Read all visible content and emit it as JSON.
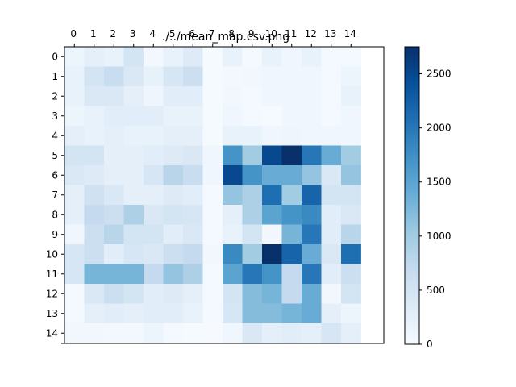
{
  "chart_data": {
    "type": "heatmap",
    "title": "./../mean_map.csv.png",
    "x_ticks": [
      "0",
      "1",
      "2",
      "3",
      "4",
      "5",
      "6",
      "7",
      "8",
      "9",
      "10",
      "11",
      "12",
      "13",
      "14"
    ],
    "y_ticks": [
      "0",
      "1",
      "2",
      "3",
      "4",
      "5",
      "6",
      "7",
      "8",
      "9",
      "10",
      "11",
      "12",
      "13",
      "14"
    ],
    "grid": false,
    "colormap": "Blues",
    "colorbar": {
      "range": [
        0,
        2750
      ],
      "ticks": [
        0,
        500,
        1000,
        1500,
        2000,
        2500
      ],
      "tick_labels": [
        "0",
        "500",
        "1000",
        "1500",
        "2000",
        "2500"
      ],
      "position": "right"
    },
    "values": [
      [
        150,
        250,
        200,
        500,
        60,
        200,
        350,
        30,
        200,
        50,
        200,
        100,
        200,
        50,
        50
      ],
      [
        200,
        500,
        650,
        400,
        220,
        450,
        600,
        30,
        60,
        80,
        100,
        100,
        100,
        50,
        150
      ],
      [
        200,
        400,
        400,
        250,
        120,
        300,
        300,
        30,
        80,
        50,
        100,
        100,
        100,
        50,
        200
      ],
      [
        150,
        200,
        300,
        300,
        300,
        200,
        200,
        30,
        100,
        50,
        30,
        100,
        100,
        50,
        100
      ],
      [
        250,
        200,
        250,
        200,
        200,
        250,
        250,
        30,
        200,
        200,
        100,
        120,
        100,
        100,
        100
      ],
      [
        500,
        500,
        250,
        250,
        300,
        350,
        400,
        100,
        1700,
        1000,
        2500,
        2750,
        2000,
        1400,
        1000
      ],
      [
        400,
        350,
        250,
        250,
        450,
        800,
        650,
        100,
        2500,
        1700,
        1400,
        1400,
        1100,
        400,
        1100
      ],
      [
        250,
        550,
        400,
        250,
        250,
        350,
        300,
        50,
        1100,
        900,
        2100,
        1000,
        2200,
        500,
        500
      ],
      [
        250,
        700,
        600,
        900,
        400,
        500,
        450,
        50,
        250,
        900,
        1500,
        1700,
        1800,
        300,
        400
      ],
      [
        100,
        600,
        800,
        500,
        500,
        300,
        400,
        50,
        200,
        500,
        80,
        1300,
        2000,
        300,
        800
      ],
      [
        450,
        600,
        300,
        450,
        400,
        600,
        700,
        80,
        1800,
        1000,
        2750,
        2200,
        1400,
        400,
        2100
      ],
      [
        450,
        1300,
        1300,
        1300,
        700,
        1100,
        900,
        50,
        1500,
        2000,
        1700,
        700,
        2000,
        300,
        600
      ],
      [
        50,
        400,
        600,
        500,
        300,
        350,
        250,
        50,
        500,
        1200,
        1300,
        700,
        1400,
        80,
        500
      ],
      [
        50,
        250,
        300,
        250,
        300,
        300,
        200,
        50,
        450,
        1200,
        1200,
        1300,
        1400,
        250,
        150
      ],
      [
        80,
        80,
        60,
        60,
        150,
        50,
        30,
        20,
        100,
        400,
        250,
        300,
        250,
        450,
        250
      ]
    ]
  }
}
